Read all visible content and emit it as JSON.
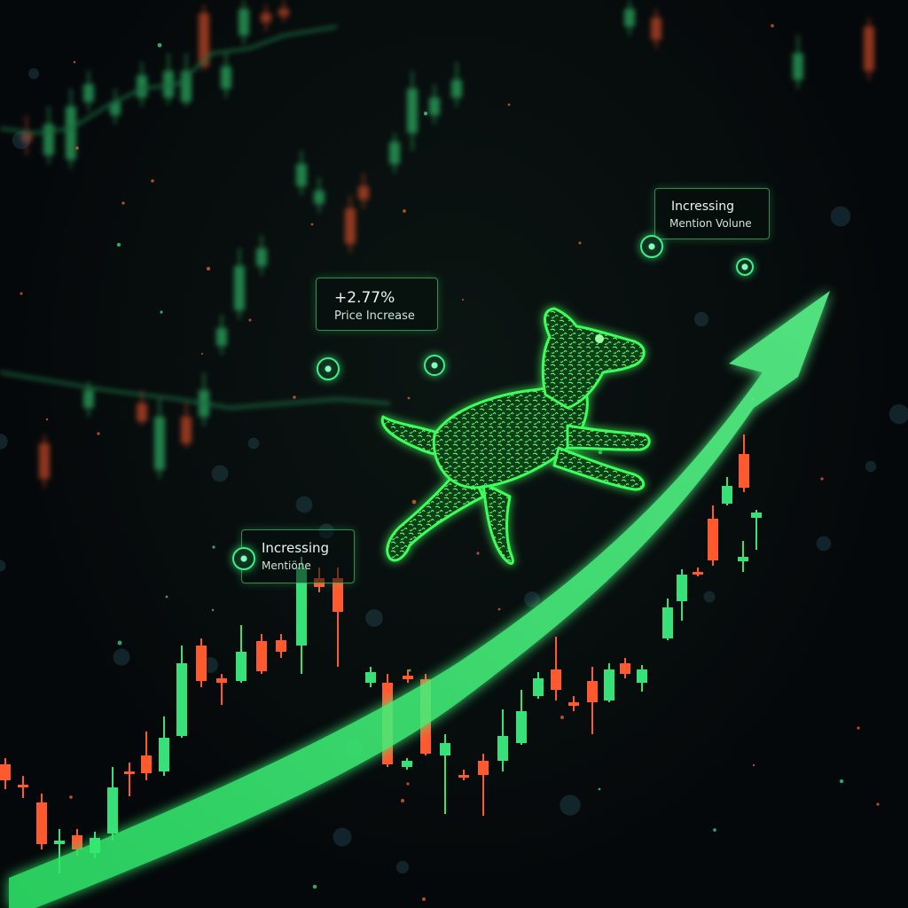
{
  "callouts": {
    "price": {
      "value": "+2.77%",
      "label": "Price Increase"
    },
    "mention_right": {
      "title": "Incressing",
      "label": "Mention Volune"
    },
    "mention_left": {
      "title": "Incressing",
      "label": "Mentiöne"
    }
  },
  "colors": {
    "background": "#05080a",
    "bull_candle": "#38e07a",
    "bear_candle": "#ff5a2e",
    "arrow": "#3dff7e",
    "dog_glow": "#41ff6a"
  },
  "icons": {
    "trend": "trend-arrow-icon",
    "dog": "glowing-dog-icon",
    "node": "data-node-icon"
  }
}
